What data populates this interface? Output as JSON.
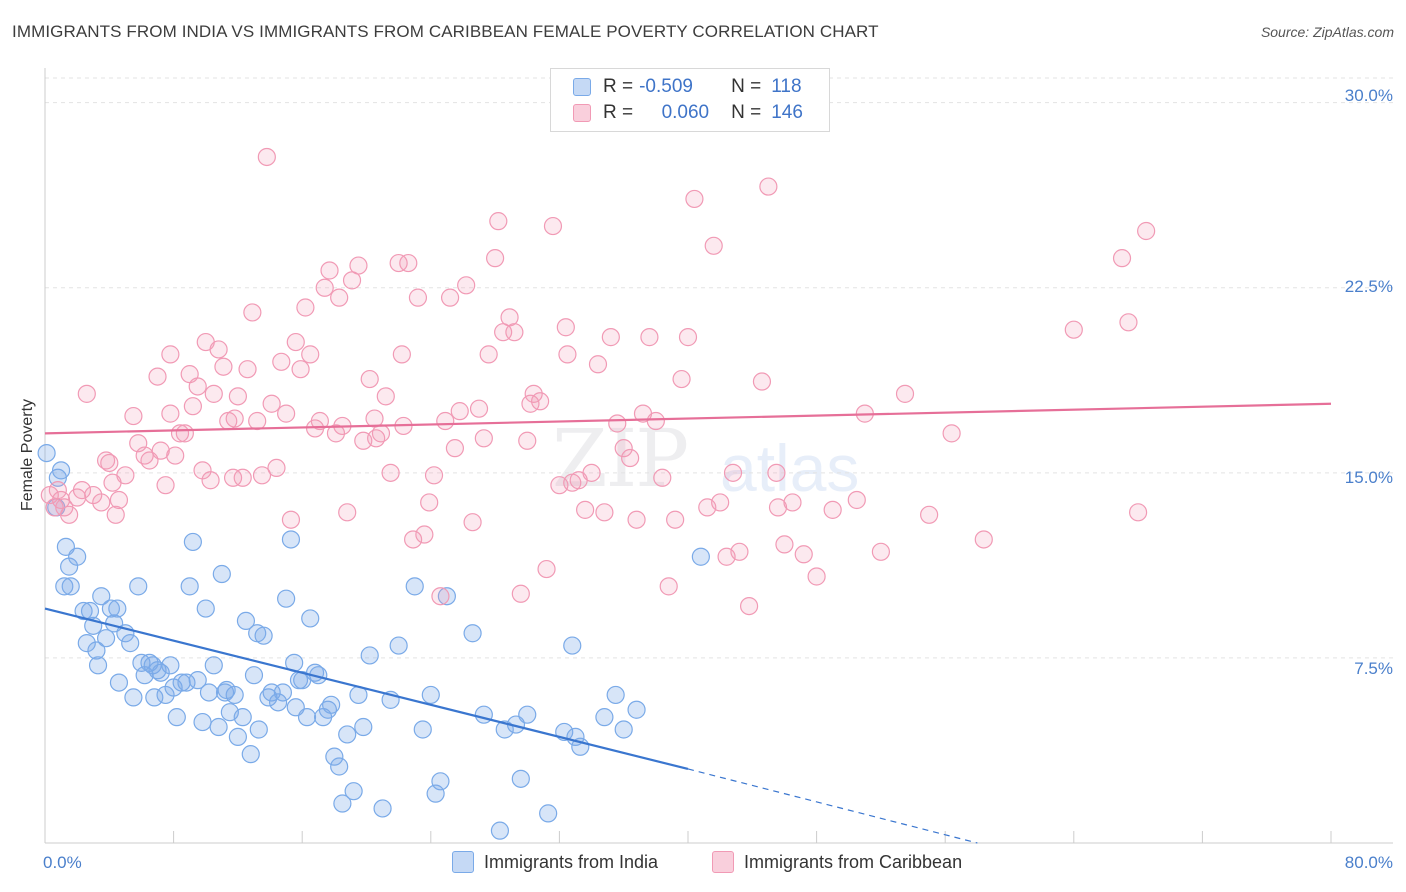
{
  "chart_data": {
    "type": "scatter",
    "title": "IMMIGRANTS FROM INDIA VS IMMIGRANTS FROM CARIBBEAN FEMALE POVERTY CORRELATION CHART",
    "source": "Source: ZipAtlas.com",
    "ylabel": "Female Poverty",
    "xlim": [
      0,
      80
    ],
    "ylim": [
      0,
      31
    ],
    "y_ticks": [
      "30.0%",
      "22.5%",
      "15.0%",
      "7.5%"
    ],
    "x_ticks": [
      "0.0%",
      "80.0%"
    ],
    "watermark": {
      "zip": "ZIP",
      "atlas": "atlas"
    },
    "legend": {
      "india": {
        "r_label": "R =",
        "r_value": "-0.509",
        "n_label": "N =",
        "n_value": "118"
      },
      "caribbean": {
        "r_label": "R =",
        "r_value": "0.060",
        "n_label": "N =",
        "n_value": "146"
      }
    },
    "series": [
      {
        "name": "Immigrants from India",
        "color": "#7aaae8",
        "trend": {
          "x0": 0,
          "y0": 9.5,
          "x1": 40,
          "y1": 3.0,
          "dash_to_x": 58,
          "dash_to_y": 0.0
        },
        "points": [
          [
            0.1,
            15.8
          ],
          [
            0.8,
            14.8
          ],
          [
            1.0,
            15.1
          ],
          [
            0.7,
            13.6
          ],
          [
            1.3,
            12.0
          ],
          [
            1.5,
            11.2
          ],
          [
            1.2,
            10.4
          ],
          [
            1.6,
            10.4
          ],
          [
            2.0,
            11.6
          ],
          [
            2.4,
            9.4
          ],
          [
            2.8,
            9.4
          ],
          [
            3.0,
            8.8
          ],
          [
            3.2,
            7.8
          ],
          [
            3.3,
            7.2
          ],
          [
            3.5,
            10.0
          ],
          [
            3.8,
            8.3
          ],
          [
            4.1,
            9.5
          ],
          [
            4.3,
            8.9
          ],
          [
            4.5,
            9.5
          ],
          [
            4.6,
            6.5
          ],
          [
            5.0,
            8.5
          ],
          [
            5.3,
            8.1
          ],
          [
            5.5,
            5.9
          ],
          [
            5.8,
            10.4
          ],
          [
            6.0,
            7.3
          ],
          [
            6.2,
            6.8
          ],
          [
            6.5,
            7.3
          ],
          [
            6.7,
            7.2
          ],
          [
            7.0,
            7.0
          ],
          [
            7.2,
            6.9
          ],
          [
            7.5,
            6.0
          ],
          [
            7.8,
            7.2
          ],
          [
            8.0,
            6.3
          ],
          [
            8.2,
            5.1
          ],
          [
            8.5,
            6.5
          ],
          [
            8.8,
            6.5
          ],
          [
            9.0,
            10.4
          ],
          [
            9.2,
            12.2
          ],
          [
            9.5,
            6.6
          ],
          [
            9.8,
            4.9
          ],
          [
            10.0,
            9.5
          ],
          [
            10.2,
            6.1
          ],
          [
            10.5,
            7.2
          ],
          [
            10.8,
            4.7
          ],
          [
            11.0,
            10.9
          ],
          [
            11.2,
            6.1
          ],
          [
            11.5,
            5.3
          ],
          [
            11.8,
            6.0
          ],
          [
            12.0,
            4.3
          ],
          [
            12.3,
            5.1
          ],
          [
            12.5,
            9.0
          ],
          [
            12.8,
            3.6
          ],
          [
            13.0,
            6.8
          ],
          [
            13.3,
            4.6
          ],
          [
            13.6,
            8.4
          ],
          [
            13.9,
            5.9
          ],
          [
            14.1,
            6.1
          ],
          [
            14.5,
            5.7
          ],
          [
            14.8,
            6.1
          ],
          [
            15.0,
            9.9
          ],
          [
            15.3,
            12.3
          ],
          [
            15.5,
            7.3
          ],
          [
            15.8,
            6.6
          ],
          [
            16.0,
            6.6
          ],
          [
            16.3,
            5.1
          ],
          [
            16.5,
            9.1
          ],
          [
            16.8,
            6.9
          ],
          [
            17.0,
            6.8
          ],
          [
            17.3,
            5.1
          ],
          [
            17.6,
            5.4
          ],
          [
            18.0,
            3.5
          ],
          [
            18.3,
            3.1
          ],
          [
            18.5,
            1.6
          ],
          [
            18.8,
            4.4
          ],
          [
            19.2,
            2.1
          ],
          [
            19.5,
            6.0
          ],
          [
            19.8,
            4.7
          ],
          [
            20.2,
            7.6
          ],
          [
            21.0,
            1.4
          ],
          [
            21.5,
            5.8
          ],
          [
            22.0,
            8.0
          ],
          [
            23.0,
            10.4
          ],
          [
            23.5,
            4.6
          ],
          [
            24.0,
            6.0
          ],
          [
            24.3,
            2.0
          ],
          [
            24.6,
            2.5
          ],
          [
            25.0,
            10.0
          ],
          [
            26.6,
            8.5
          ],
          [
            27.3,
            5.2
          ],
          [
            28.3,
            0.5
          ],
          [
            28.6,
            4.6
          ],
          [
            29.3,
            4.8
          ],
          [
            29.6,
            2.6
          ],
          [
            30.0,
            5.2
          ],
          [
            31.3,
            1.2
          ],
          [
            32.3,
            4.5
          ],
          [
            32.8,
            8.0
          ],
          [
            33.0,
            4.3
          ],
          [
            33.3,
            3.9
          ],
          [
            34.8,
            5.1
          ],
          [
            35.5,
            6.0
          ],
          [
            36.0,
            4.6
          ],
          [
            36.8,
            5.4
          ],
          [
            40.8,
            11.6
          ],
          [
            11.3,
            6.2
          ],
          [
            17.8,
            5.6
          ],
          [
            13.2,
            8.5
          ],
          [
            6.8,
            5.9
          ],
          [
            2.6,
            8.1
          ],
          [
            15.6,
            5.5
          ]
        ]
      },
      {
        "name": "Immigrants from Caribbean",
        "color": "#f19ab5",
        "trend": {
          "x0": 0,
          "y0": 16.6,
          "x1": 80,
          "y1": 17.8
        },
        "points": [
          [
            0.3,
            14.1
          ],
          [
            0.6,
            13.6
          ],
          [
            0.8,
            14.3
          ],
          [
            1.0,
            13.9
          ],
          [
            1.2,
            13.6
          ],
          [
            1.5,
            13.3
          ],
          [
            2.0,
            14.0
          ],
          [
            2.3,
            14.3
          ],
          [
            2.6,
            18.2
          ],
          [
            3.0,
            14.1
          ],
          [
            3.5,
            13.8
          ],
          [
            3.8,
            15.5
          ],
          [
            4.0,
            15.4
          ],
          [
            4.2,
            14.6
          ],
          [
            4.4,
            13.3
          ],
          [
            4.6,
            13.9
          ],
          [
            5.0,
            14.9
          ],
          [
            5.5,
            17.3
          ],
          [
            5.8,
            16.2
          ],
          [
            6.2,
            15.7
          ],
          [
            6.5,
            15.5
          ],
          [
            7.0,
            18.9
          ],
          [
            7.2,
            15.9
          ],
          [
            7.5,
            14.5
          ],
          [
            7.8,
            19.8
          ],
          [
            8.1,
            15.7
          ],
          [
            8.4,
            16.6
          ],
          [
            8.7,
            16.6
          ],
          [
            9.0,
            19.0
          ],
          [
            9.2,
            17.7
          ],
          [
            9.5,
            18.5
          ],
          [
            9.8,
            15.1
          ],
          [
            10.0,
            20.3
          ],
          [
            10.3,
            14.7
          ],
          [
            10.5,
            18.2
          ],
          [
            10.8,
            20.0
          ],
          [
            11.1,
            19.3
          ],
          [
            11.4,
            17.1
          ],
          [
            11.7,
            14.8
          ],
          [
            12.0,
            18.1
          ],
          [
            12.3,
            14.8
          ],
          [
            12.6,
            19.2
          ],
          [
            12.9,
            21.5
          ],
          [
            13.2,
            17.1
          ],
          [
            13.5,
            14.9
          ],
          [
            13.8,
            27.8
          ],
          [
            14.1,
            17.8
          ],
          [
            14.4,
            15.2
          ],
          [
            14.7,
            19.5
          ],
          [
            15.0,
            17.4
          ],
          [
            15.3,
            13.1
          ],
          [
            15.6,
            20.3
          ],
          [
            15.9,
            19.2
          ],
          [
            16.2,
            21.7
          ],
          [
            16.5,
            19.8
          ],
          [
            16.8,
            16.8
          ],
          [
            17.1,
            17.1
          ],
          [
            17.4,
            22.5
          ],
          [
            17.7,
            23.2
          ],
          [
            18.1,
            16.6
          ],
          [
            18.5,
            16.9
          ],
          [
            18.8,
            13.4
          ],
          [
            19.1,
            22.8
          ],
          [
            19.5,
            23.4
          ],
          [
            19.8,
            16.3
          ],
          [
            20.2,
            18.8
          ],
          [
            20.6,
            16.4
          ],
          [
            20.9,
            16.6
          ],
          [
            21.2,
            18.1
          ],
          [
            21.5,
            15.0
          ],
          [
            22.0,
            23.5
          ],
          [
            22.3,
            16.9
          ],
          [
            22.6,
            23.5
          ],
          [
            22.9,
            12.3
          ],
          [
            23.2,
            22.1
          ],
          [
            23.6,
            12.5
          ],
          [
            23.9,
            13.8
          ],
          [
            24.2,
            14.9
          ],
          [
            24.6,
            10.0
          ],
          [
            24.9,
            17.1
          ],
          [
            25.2,
            22.1
          ],
          [
            25.5,
            16.0
          ],
          [
            25.8,
            17.5
          ],
          [
            26.2,
            22.6
          ],
          [
            26.6,
            13.0
          ],
          [
            27.0,
            17.6
          ],
          [
            27.3,
            16.4
          ],
          [
            27.6,
            19.8
          ],
          [
            28.0,
            23.7
          ],
          [
            28.2,
            25.2
          ],
          [
            28.5,
            20.7
          ],
          [
            28.9,
            21.3
          ],
          [
            29.2,
            20.7
          ],
          [
            29.6,
            10.1
          ],
          [
            30.0,
            16.3
          ],
          [
            30.4,
            18.2
          ],
          [
            30.8,
            17.9
          ],
          [
            31.2,
            11.1
          ],
          [
            31.6,
            25.0
          ],
          [
            32.0,
            14.5
          ],
          [
            32.4,
            20.9
          ],
          [
            32.8,
            14.6
          ],
          [
            33.2,
            14.7
          ],
          [
            33.6,
            13.5
          ],
          [
            34.0,
            15.0
          ],
          [
            34.4,
            19.4
          ],
          [
            34.8,
            13.4
          ],
          [
            35.2,
            20.5
          ],
          [
            35.6,
            17.0
          ],
          [
            36.0,
            16.0
          ],
          [
            36.4,
            15.6
          ],
          [
            36.8,
            13.1
          ],
          [
            37.2,
            17.4
          ],
          [
            37.6,
            20.5
          ],
          [
            38.0,
            17.1
          ],
          [
            38.4,
            14.8
          ],
          [
            38.8,
            10.4
          ],
          [
            39.2,
            13.1
          ],
          [
            39.6,
            18.8
          ],
          [
            40.0,
            20.5
          ],
          [
            40.4,
            26.1
          ],
          [
            41.2,
            13.6
          ],
          [
            41.6,
            24.2
          ],
          [
            42.0,
            13.8
          ],
          [
            42.4,
            11.6
          ],
          [
            42.8,
            15.0
          ],
          [
            43.2,
            11.8
          ],
          [
            43.8,
            9.6
          ],
          [
            44.6,
            18.7
          ],
          [
            45.0,
            26.6
          ],
          [
            45.6,
            13.6
          ],
          [
            46.0,
            12.1
          ],
          [
            46.5,
            13.8
          ],
          [
            47.2,
            11.7
          ],
          [
            48.0,
            10.8
          ],
          [
            49.0,
            13.5
          ],
          [
            50.5,
            13.9
          ],
          [
            51.0,
            17.4
          ],
          [
            52.0,
            11.8
          ],
          [
            53.5,
            18.2
          ],
          [
            55.0,
            13.3
          ],
          [
            56.4,
            16.6
          ],
          [
            58.4,
            12.3
          ],
          [
            64.0,
            20.8
          ],
          [
            67.0,
            23.7
          ],
          [
            67.4,
            21.1
          ],
          [
            68.0,
            13.4
          ],
          [
            68.5,
            24.8
          ],
          [
            45.5,
            15.0
          ],
          [
            22.2,
            19.8
          ],
          [
            20.5,
            17.2
          ],
          [
            18.3,
            22.1
          ],
          [
            30.2,
            17.8
          ],
          [
            11.8,
            17.2
          ],
          [
            7.8,
            17.4
          ],
          [
            32.5,
            19.8
          ]
        ]
      }
    ]
  },
  "bottom_legend": {
    "india": "Immigrants from India",
    "caribbean": "Immigrants from Caribbean"
  }
}
